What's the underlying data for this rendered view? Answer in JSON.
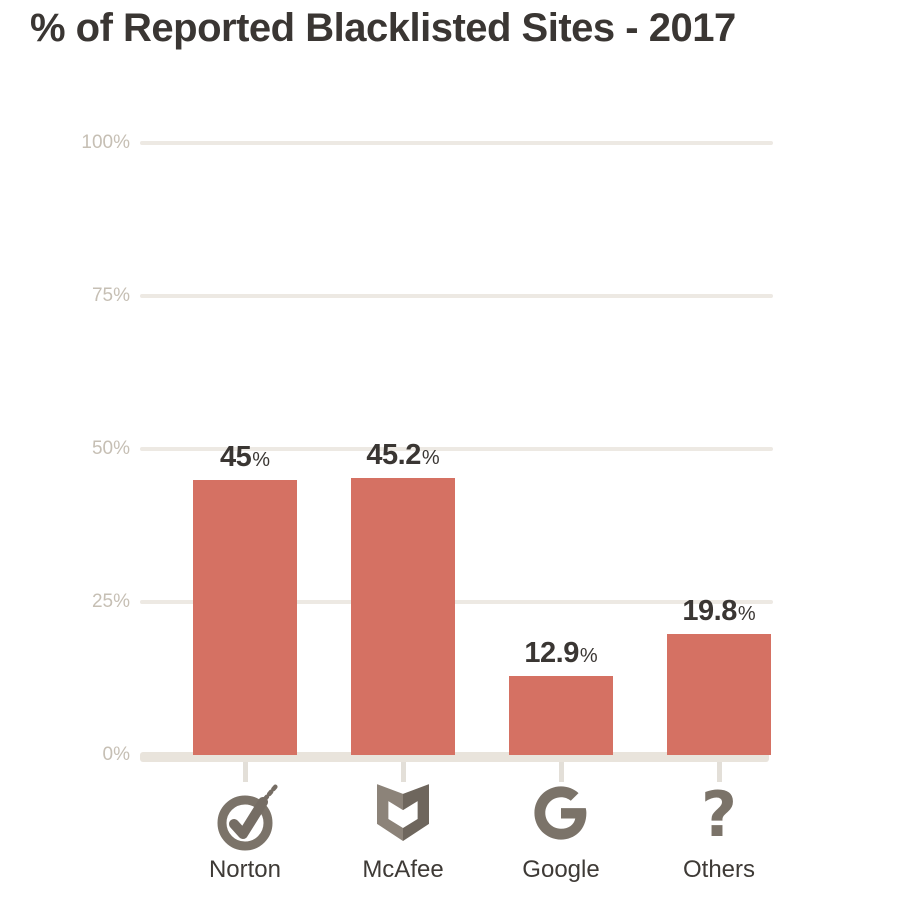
{
  "title": "% of Reported Blacklisted Sites - 2017",
  "colors": {
    "bar": "#d57163",
    "title_text": "#3a3633",
    "value_text": "#3a3633",
    "category_text": "#3e3a36",
    "axis_label": "#c6bfb4",
    "grid_line": "#ede9e3",
    "baseline": "#e9e4dc",
    "tick": "#e3dfd8",
    "icon": "#7b7369",
    "icon_light": "#8c8379",
    "icon_dark": "#6e665d"
  },
  "chart_data": {
    "type": "bar",
    "title": "% of Reported Blacklisted Sites - 2017",
    "categories": [
      "Norton",
      "McAfee",
      "Google",
      "Others"
    ],
    "values": [
      45,
      45.2,
      12.9,
      19.8
    ],
    "value_labels": [
      "45",
      "45.2",
      "12.9",
      "19.8"
    ],
    "value_suffix": "%",
    "ylabel": "",
    "xlabel": "",
    "ylim": [
      0,
      100
    ],
    "yticks": [
      0,
      25,
      50,
      75,
      100
    ],
    "ytick_labels": [
      "0%",
      "25%",
      "50%",
      "75%",
      "100%"
    ],
    "grid": "horizontal",
    "legend": "none",
    "icons": [
      "norton-check-circle-icon",
      "mcafee-shield-icon",
      "google-g-icon",
      "question-mark-icon"
    ]
  }
}
